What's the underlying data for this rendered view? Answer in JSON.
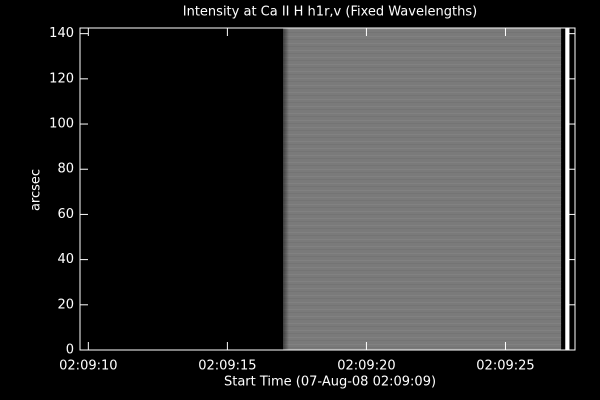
{
  "chart_data": {
    "type": "image",
    "title": "Intensity at Ca II H h1r,v (Fixed Wavelengths)",
    "x_label": "Start Time (07-Aug-08 02:09:09)",
    "y_label": "arcsec",
    "xlim": [
      9.7,
      27.5
    ],
    "xticks": [
      {
        "value": 10,
        "label": "02:09:10"
      },
      {
        "value": 15,
        "label": "02:09:15"
      },
      {
        "value": 20,
        "label": "02:09:20"
      },
      {
        "value": 25,
        "label": "02:09:25"
      }
    ],
    "ylim": [
      0,
      142.5
    ],
    "yticks": [
      0,
      20,
      40,
      60,
      80,
      100,
      120,
      140
    ],
    "segments": [
      {
        "x0": 9.7,
        "x1": 17.0,
        "color": "#000000"
      },
      {
        "x0": 17.0,
        "x1": 27.0,
        "color": "#7a7a7a"
      },
      {
        "x0": 27.15,
        "x1": 27.3,
        "color": "#ffffff"
      }
    ]
  }
}
